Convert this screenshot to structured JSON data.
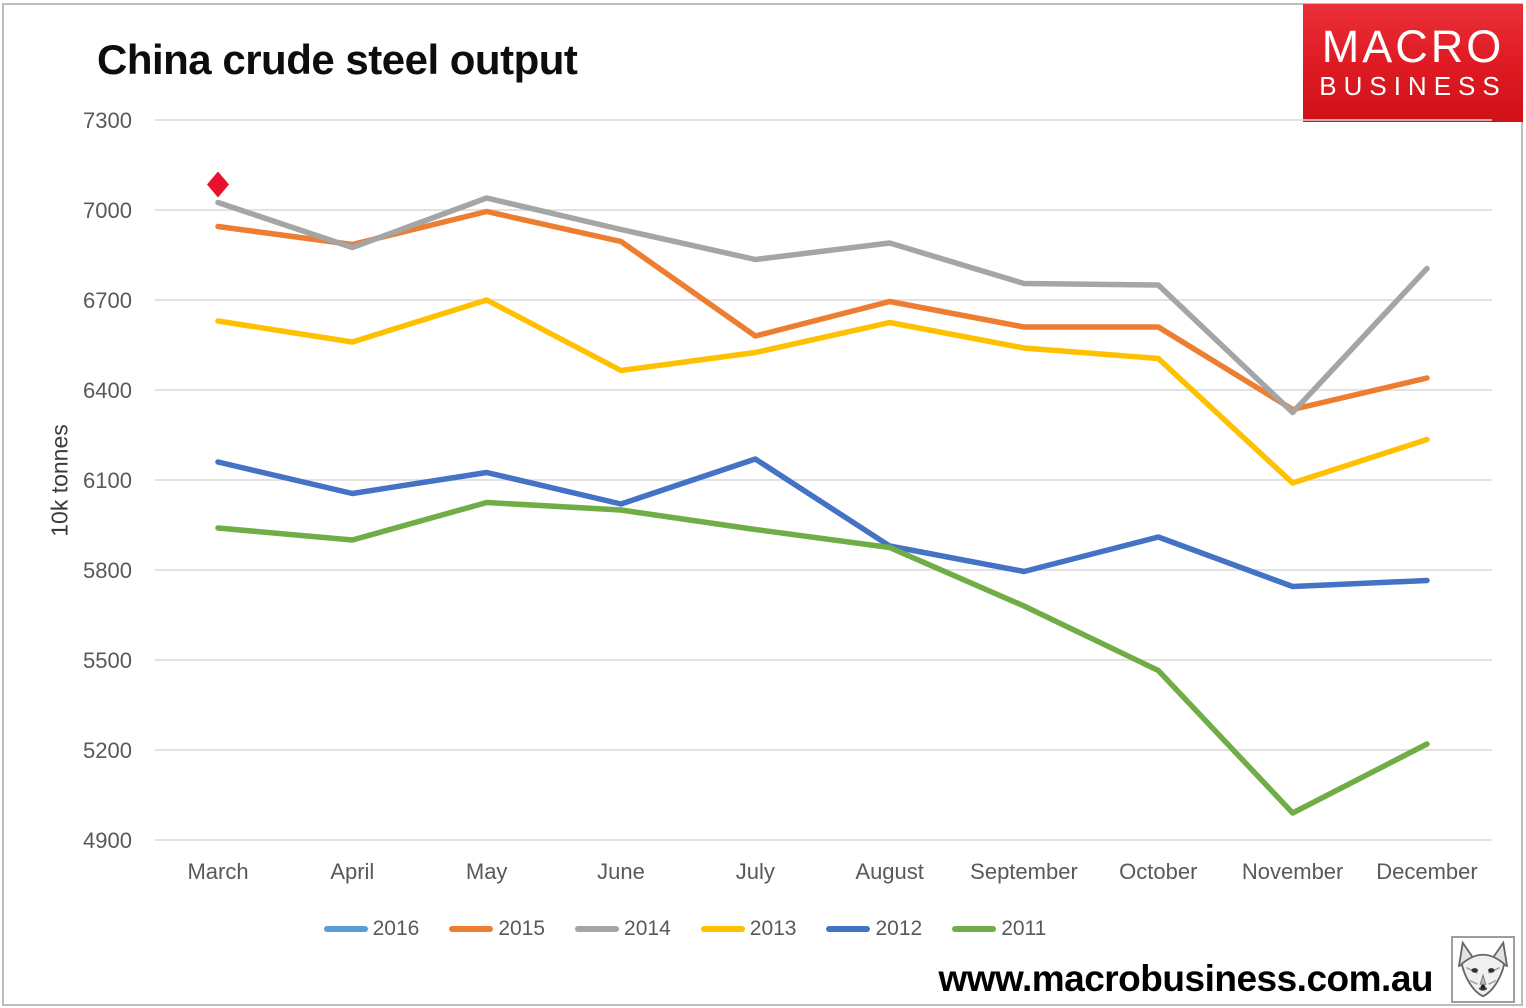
{
  "page": {
    "title": "China crude steel output",
    "website": "www.macrobusiness.com.au",
    "logo": {
      "line1": "MACRO",
      "line2": "BUSINESS",
      "bg_color": "#DD1A21"
    },
    "icons": {
      "corner_image": "fox-head-drawing"
    }
  },
  "chart_data": {
    "type": "line",
    "title": "China crude steel output",
    "xlabel": "",
    "ylabel": "10k tonnes",
    "categories": [
      "March",
      "April",
      "May",
      "June",
      "July",
      "August",
      "September",
      "October",
      "November",
      "December"
    ],
    "ylim": [
      4900,
      7300
    ],
    "ytick_step": 300,
    "yticks": [
      7300,
      7000,
      6700,
      6400,
      6100,
      5800,
      5500,
      5200,
      4900
    ],
    "grid": true,
    "legend_position": "bottom",
    "grid_color": "#D9D9D9",
    "tick_color": "#595959",
    "series": [
      {
        "name": "2016",
        "color": "#5B9BD5",
        "marker": "diamond",
        "marker_color": "#E8112D",
        "values": [
          7085,
          null,
          null,
          null,
          null,
          null,
          null,
          null,
          null,
          null
        ]
      },
      {
        "name": "2015",
        "color": "#ED7D31",
        "values": [
          6945,
          6885,
          6995,
          6895,
          6580,
          6695,
          6610,
          6610,
          6335,
          6440
        ]
      },
      {
        "name": "2014",
        "color": "#A5A5A5",
        "values": [
          7025,
          6875,
          7040,
          6935,
          6835,
          6890,
          6755,
          6750,
          6325,
          6805
        ]
      },
      {
        "name": "2013",
        "color": "#FFC000",
        "values": [
          6630,
          6560,
          6700,
          6465,
          6525,
          6625,
          6540,
          6505,
          6090,
          6235
        ]
      },
      {
        "name": "2012",
        "color": "#4472C4",
        "values": [
          6160,
          6055,
          6125,
          6020,
          6170,
          5880,
          5795,
          5910,
          5745,
          5765
        ]
      },
      {
        "name": "2011",
        "color": "#70AD47",
        "values": [
          5940,
          5900,
          6025,
          6000,
          5935,
          5875,
          5680,
          5465,
          4990,
          5220
        ]
      }
    ]
  }
}
